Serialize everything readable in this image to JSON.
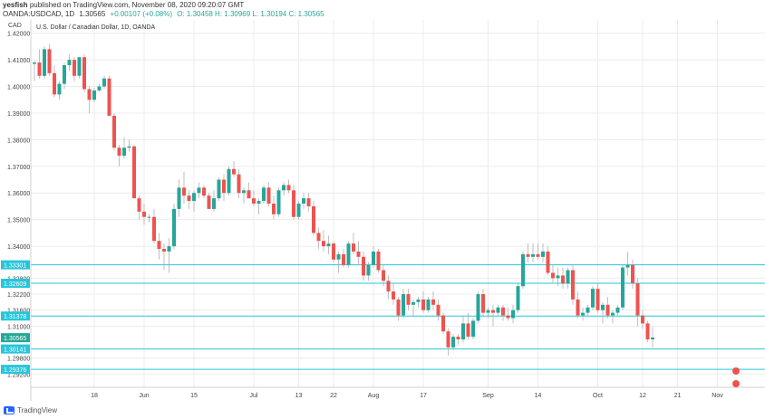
{
  "header": {
    "publisher": "yesfish",
    "published_text": "published on TradingView.com, November 08, 2020 09:20:07 GMT",
    "symbol": "OANDA:USDCAD, 1D",
    "last": "1.30565",
    "change": "+0.00107 (+0.08%)",
    "ohlc": "O: 1.30458  H: 1.30969  L: 1.30194  C: 1.30565"
  },
  "footer": {
    "brand": "TradingView"
  },
  "colors": {
    "up": "#26a69a",
    "down": "#ef5350",
    "level": "#26c6da",
    "grid": "#ececec",
    "axis": "#d0d0d0",
    "last_badge": "#26a69a"
  },
  "chart_data": {
    "type": "candlestick",
    "title": "U.S. Dollar / Canadian Dollar, 1D, OANDA",
    "currency_label": "CAD",
    "y_ticks": [
      "1.42000",
      "1.41000",
      "1.40000",
      "1.39000",
      "1.38000",
      "1.37000",
      "1.36000",
      "1.35000",
      "1.34000",
      "1.32800",
      "1.32200",
      "1.31600",
      "1.31000",
      "1.29800",
      "1.29200"
    ],
    "ylim": [
      1.287,
      1.425
    ],
    "x_ticks": [
      {
        "label": "18",
        "index": 12
      },
      {
        "label": "Jun",
        "index": 22
      },
      {
        "label": "15",
        "index": 32
      },
      {
        "label": "Jul",
        "index": 44
      },
      {
        "label": "13",
        "index": 53
      },
      {
        "label": "22",
        "index": 60
      },
      {
        "label": "Aug",
        "index": 68
      },
      {
        "label": "17",
        "index": 78
      },
      {
        "label": "Sep",
        "index": 91
      },
      {
        "label": "14",
        "index": 101
      },
      {
        "label": "Oct",
        "index": 113
      },
      {
        "label": "12",
        "index": 122
      },
      {
        "label": "21",
        "index": 129
      },
      {
        "label": "Nov",
        "index": 137
      }
    ],
    "horizontal_levels": [
      "1.33301",
      "1.32609",
      "1.31378",
      "1.30141",
      "1.29376"
    ],
    "last_price": "1.30565",
    "candles": [
      [
        1.4085,
        1.4095,
        1.402,
        1.409
      ],
      [
        1.409,
        1.414,
        1.403,
        1.404
      ],
      [
        1.404,
        1.415,
        1.403,
        1.414
      ],
      [
        1.414,
        1.416,
        1.404,
        1.405
      ],
      [
        1.405,
        1.408,
        1.396,
        1.397
      ],
      [
        1.397,
        1.402,
        1.395,
        1.401
      ],
      [
        1.401,
        1.409,
        1.399,
        1.408
      ],
      [
        1.408,
        1.412,
        1.406,
        1.41
      ],
      [
        1.41,
        1.411,
        1.402,
        1.404
      ],
      [
        1.404,
        1.411,
        1.403,
        1.411
      ],
      [
        1.411,
        1.412,
        1.398,
        1.399
      ],
      [
        1.399,
        1.4,
        1.39,
        1.395
      ],
      [
        1.395,
        1.3995,
        1.394,
        1.3985
      ],
      [
        1.3985,
        1.401,
        1.398,
        1.4
      ],
      [
        1.4,
        1.404,
        1.399,
        1.403
      ],
      [
        1.403,
        1.404,
        1.389,
        1.389
      ],
      [
        1.389,
        1.39,
        1.376,
        1.377
      ],
      [
        1.377,
        1.378,
        1.37,
        1.374
      ],
      [
        1.374,
        1.381,
        1.373,
        1.377
      ],
      [
        1.377,
        1.38,
        1.3755,
        1.3775
      ],
      [
        1.3775,
        1.378,
        1.358,
        1.358
      ],
      [
        1.358,
        1.359,
        1.35,
        1.353
      ],
      [
        1.353,
        1.356,
        1.348,
        1.351
      ],
      [
        1.351,
        1.352,
        1.349,
        1.351
      ],
      [
        1.351,
        1.354,
        1.341,
        1.342
      ],
      [
        1.342,
        1.345,
        1.335,
        1.339
      ],
      [
        1.339,
        1.341,
        1.331,
        1.338
      ],
      [
        1.338,
        1.343,
        1.33,
        1.34
      ],
      [
        1.34,
        1.356,
        1.339,
        1.354
      ],
      [
        1.354,
        1.365,
        1.351,
        1.362
      ],
      [
        1.362,
        1.368,
        1.356,
        1.359
      ],
      [
        1.359,
        1.361,
        1.354,
        1.357
      ],
      [
        1.357,
        1.361,
        1.353,
        1.36
      ],
      [
        1.36,
        1.364,
        1.358,
        1.362
      ],
      [
        1.362,
        1.363,
        1.358,
        1.359
      ],
      [
        1.359,
        1.36,
        1.354,
        1.354
      ],
      [
        1.354,
        1.361,
        1.353,
        1.358
      ],
      [
        1.358,
        1.366,
        1.357,
        1.365
      ],
      [
        1.365,
        1.367,
        1.357,
        1.36
      ],
      [
        1.36,
        1.37,
        1.359,
        1.369
      ],
      [
        1.369,
        1.372,
        1.366,
        1.367
      ],
      [
        1.367,
        1.369,
        1.358,
        1.36
      ],
      [
        1.36,
        1.362,
        1.356,
        1.361
      ],
      [
        1.361,
        1.364,
        1.358,
        1.358
      ],
      [
        1.358,
        1.361,
        1.355,
        1.356
      ],
      [
        1.356,
        1.358,
        1.352,
        1.357
      ],
      [
        1.357,
        1.363,
        1.356,
        1.362
      ],
      [
        1.362,
        1.364,
        1.355,
        1.356
      ],
      [
        1.356,
        1.359,
        1.35,
        1.352
      ],
      [
        1.352,
        1.362,
        1.351,
        1.361
      ],
      [
        1.361,
        1.364,
        1.359,
        1.363
      ],
      [
        1.363,
        1.365,
        1.36,
        1.361
      ],
      [
        1.361,
        1.363,
        1.35,
        1.351
      ],
      [
        1.351,
        1.357,
        1.35,
        1.356
      ],
      [
        1.356,
        1.36,
        1.354,
        1.358
      ],
      [
        1.358,
        1.36,
        1.353,
        1.355
      ],
      [
        1.355,
        1.357,
        1.344,
        1.345
      ],
      [
        1.345,
        1.347,
        1.339,
        1.342
      ],
      [
        1.342,
        1.346,
        1.338,
        1.34
      ],
      [
        1.34,
        1.344,
        1.337,
        1.341
      ],
      [
        1.341,
        1.342,
        1.334,
        1.335
      ],
      [
        1.335,
        1.338,
        1.33,
        1.337
      ],
      [
        1.337,
        1.339,
        1.332,
        1.333
      ],
      [
        1.333,
        1.342,
        1.332,
        1.341
      ],
      [
        1.341,
        1.345,
        1.337,
        1.338
      ],
      [
        1.338,
        1.342,
        1.333,
        1.336
      ],
      [
        1.336,
        1.338,
        1.327,
        1.329
      ],
      [
        1.329,
        1.334,
        1.327,
        1.333
      ],
      [
        1.333,
        1.34,
        1.332,
        1.338
      ],
      [
        1.338,
        1.339,
        1.33,
        1.331
      ],
      [
        1.331,
        1.333,
        1.325,
        1.327
      ],
      [
        1.327,
        1.329,
        1.32,
        1.323
      ],
      [
        1.323,
        1.326,
        1.318,
        1.32
      ],
      [
        1.32,
        1.321,
        1.312,
        1.314
      ],
      [
        1.314,
        1.324,
        1.313,
        1.322
      ],
      [
        1.322,
        1.324,
        1.316,
        1.318
      ],
      [
        1.318,
        1.32,
        1.314,
        1.319
      ],
      [
        1.319,
        1.321,
        1.317,
        1.32
      ],
      [
        1.32,
        1.323,
        1.315,
        1.316
      ],
      [
        1.316,
        1.321,
        1.315,
        1.32
      ],
      [
        1.32,
        1.323,
        1.316,
        1.318
      ],
      [
        1.318,
        1.32,
        1.312,
        1.314
      ],
      [
        1.314,
        1.315,
        1.307,
        1.308
      ],
      [
        1.308,
        1.309,
        1.299,
        1.302
      ],
      [
        1.302,
        1.307,
        1.301,
        1.306
      ],
      [
        1.306,
        1.307,
        1.303,
        1.305
      ],
      [
        1.305,
        1.314,
        1.304,
        1.311
      ],
      [
        1.311,
        1.315,
        1.305,
        1.306
      ],
      [
        1.306,
        1.313,
        1.305,
        1.312
      ],
      [
        1.312,
        1.323,
        1.311,
        1.322
      ],
      [
        1.322,
        1.324,
        1.314,
        1.315
      ],
      [
        1.315,
        1.317,
        1.313,
        1.316
      ],
      [
        1.316,
        1.318,
        1.31,
        1.315
      ],
      [
        1.315,
        1.318,
        1.314,
        1.317
      ],
      [
        1.317,
        1.318,
        1.312,
        1.314
      ],
      [
        1.314,
        1.317,
        1.312,
        1.313
      ],
      [
        1.313,
        1.318,
        1.311,
        1.316
      ],
      [
        1.316,
        1.326,
        1.315,
        1.325
      ],
      [
        1.325,
        1.338,
        1.324,
        1.337
      ],
      [
        1.337,
        1.341,
        1.334,
        1.336
      ],
      [
        1.336,
        1.341,
        1.334,
        1.337
      ],
      [
        1.337,
        1.341,
        1.335,
        1.336
      ],
      [
        1.336,
        1.341,
        1.334,
        1.338
      ],
      [
        1.338,
        1.34,
        1.329,
        1.33
      ],
      [
        1.33,
        1.333,
        1.326,
        1.328
      ],
      [
        1.328,
        1.332,
        1.325,
        1.329
      ],
      [
        1.329,
        1.332,
        1.324,
        1.326
      ],
      [
        1.326,
        1.332,
        1.324,
        1.331
      ],
      [
        1.331,
        1.333,
        1.318,
        1.32
      ],
      [
        1.32,
        1.323,
        1.313,
        1.314
      ],
      [
        1.314,
        1.317,
        1.312,
        1.315
      ],
      [
        1.315,
        1.318,
        1.314,
        1.317
      ],
      [
        1.317,
        1.325,
        1.316,
        1.324
      ],
      [
        1.324,
        1.326,
        1.315,
        1.316
      ],
      [
        1.316,
        1.319,
        1.311,
        1.318
      ],
      [
        1.318,
        1.321,
        1.313,
        1.314
      ],
      [
        1.314,
        1.316,
        1.311,
        1.315
      ],
      [
        1.315,
        1.318,
        1.314,
        1.317
      ],
      [
        1.317,
        1.333,
        1.316,
        1.332
      ],
      [
        1.332,
        1.338,
        1.329,
        1.333
      ],
      [
        1.333,
        1.335,
        1.324,
        1.326
      ],
      [
        1.326,
        1.328,
        1.31,
        1.314
      ],
      [
        1.314,
        1.316,
        1.309,
        1.311
      ],
      [
        1.311,
        1.312,
        1.304,
        1.305
      ],
      [
        1.305,
        1.3097,
        1.3019,
        1.3057
      ]
    ]
  }
}
